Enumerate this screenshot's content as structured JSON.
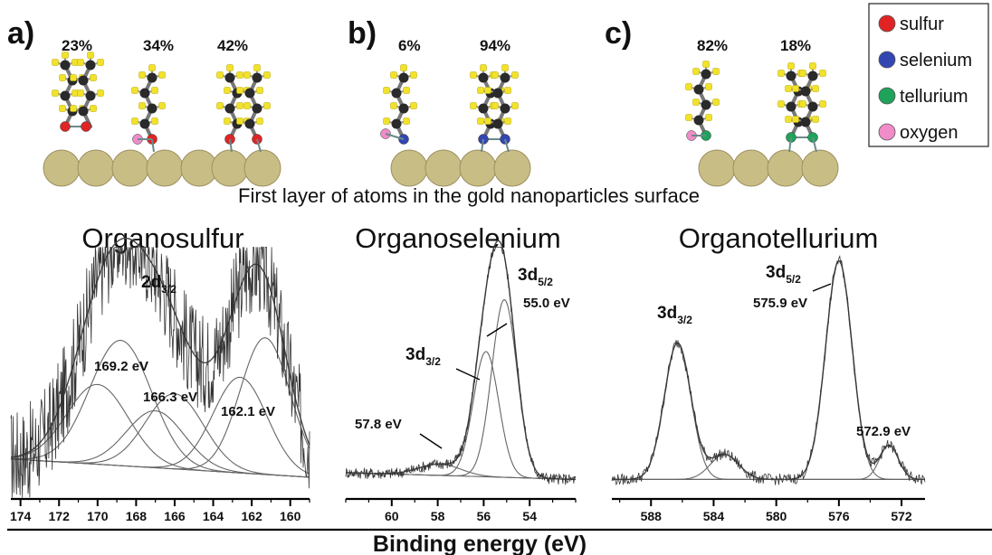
{
  "panels": [
    {
      "letter": "a)",
      "percentages": [
        "23%",
        "34%",
        "42%"
      ]
    },
    {
      "letter": "b)",
      "percentages": [
        "6%",
        "94%"
      ]
    },
    {
      "letter": "c)",
      "percentages": [
        "82%",
        "18%"
      ]
    }
  ],
  "legend": [
    {
      "label": "sulfur",
      "color": "#e02424"
    },
    {
      "label": "selenium",
      "color": "#3346b3"
    },
    {
      "label": "tellurium",
      "color": "#1fa35a"
    },
    {
      "label": "oxygen",
      "color": "#f08cc8"
    }
  ],
  "atom_colors": {
    "carbon": "#2a2a2a",
    "hydrogen": "#f2e22a",
    "gold": "#c9bd86"
  },
  "surface_caption": "First layer of atoms in the gold nanoparticles surface",
  "common_xlabel": "Binding energy (eV)",
  "chart_data": [
    {
      "type": "line",
      "title": "Organosulfur",
      "xlim": [
        174.5,
        159
      ],
      "x_ticks": [
        "174",
        "172",
        "170",
        "168",
        "166",
        "164",
        "162",
        "160"
      ],
      "x_tick_values": [
        174,
        172,
        170,
        168,
        166,
        164,
        162,
        160
      ],
      "orbital_label": {
        "main": "2d",
        "sub": "3/2"
      },
      "peaks": [
        {
          "label": "169.2 eV",
          "center": 169.2
        },
        {
          "label": "166.3 eV",
          "center": 166.3
        },
        {
          "label": "162.1 eV",
          "center": 162.1
        }
      ],
      "components": [
        {
          "center": 170.0,
          "height": 0.35,
          "width": 1.6
        },
        {
          "center": 168.8,
          "height": 0.55,
          "width": 1.6
        },
        {
          "center": 167.0,
          "height": 0.25,
          "width": 1.5
        },
        {
          "center": 166.0,
          "height": 0.33,
          "width": 1.5
        },
        {
          "center": 162.6,
          "height": 0.42,
          "width": 1.4
        },
        {
          "center": 161.3,
          "height": 0.6,
          "width": 1.3
        }
      ],
      "background": [
        0.12,
        0.04
      ]
    },
    {
      "type": "line",
      "title": "Organoselenium",
      "xlim": [
        62,
        52
      ],
      "x_ticks": [
        "60",
        "58",
        "56",
        "54"
      ],
      "x_tick_values": [
        60,
        58,
        56,
        54
      ],
      "peaks": [
        {
          "label": "57.8 eV",
          "center": 57.8
        },
        {
          "label": "55.0 eV",
          "center": 55.0
        }
      ],
      "orbital_labels": [
        {
          "main": "3d",
          "sub": "3/2"
        },
        {
          "main": "3d",
          "sub": "5/2"
        }
      ],
      "components": [
        {
          "center": 57.9,
          "height": 0.05,
          "width": 0.9
        },
        {
          "center": 55.9,
          "height": 0.55,
          "width": 0.55
        },
        {
          "center": 55.1,
          "height": 0.78,
          "width": 0.55
        }
      ],
      "background": [
        0.06,
        0.03
      ]
    },
    {
      "type": "line",
      "title": "Organotellurium",
      "xlim": [
        590.5,
        570.5
      ],
      "x_ticks": [
        "588",
        "584",
        "580",
        "576",
        "572"
      ],
      "x_tick_values": [
        588,
        584,
        580,
        576,
        572
      ],
      "peaks": [
        {
          "label": "575.9 eV",
          "center": 575.9
        },
        {
          "label": "572.9 eV",
          "center": 572.9
        }
      ],
      "orbital_labels": [
        {
          "main": "3d",
          "sub": "3/2"
        },
        {
          "main": "3d",
          "sub": "5/2"
        }
      ],
      "components": [
        {
          "center": 586.3,
          "height": 0.6,
          "width": 0.85
        },
        {
          "center": 583.3,
          "height": 0.11,
          "width": 0.9
        },
        {
          "center": 576.0,
          "height": 0.96,
          "width": 0.85
        },
        {
          "center": 572.8,
          "height": 0.15,
          "width": 0.6
        }
      ],
      "background": [
        0.03,
        0.03
      ]
    }
  ]
}
